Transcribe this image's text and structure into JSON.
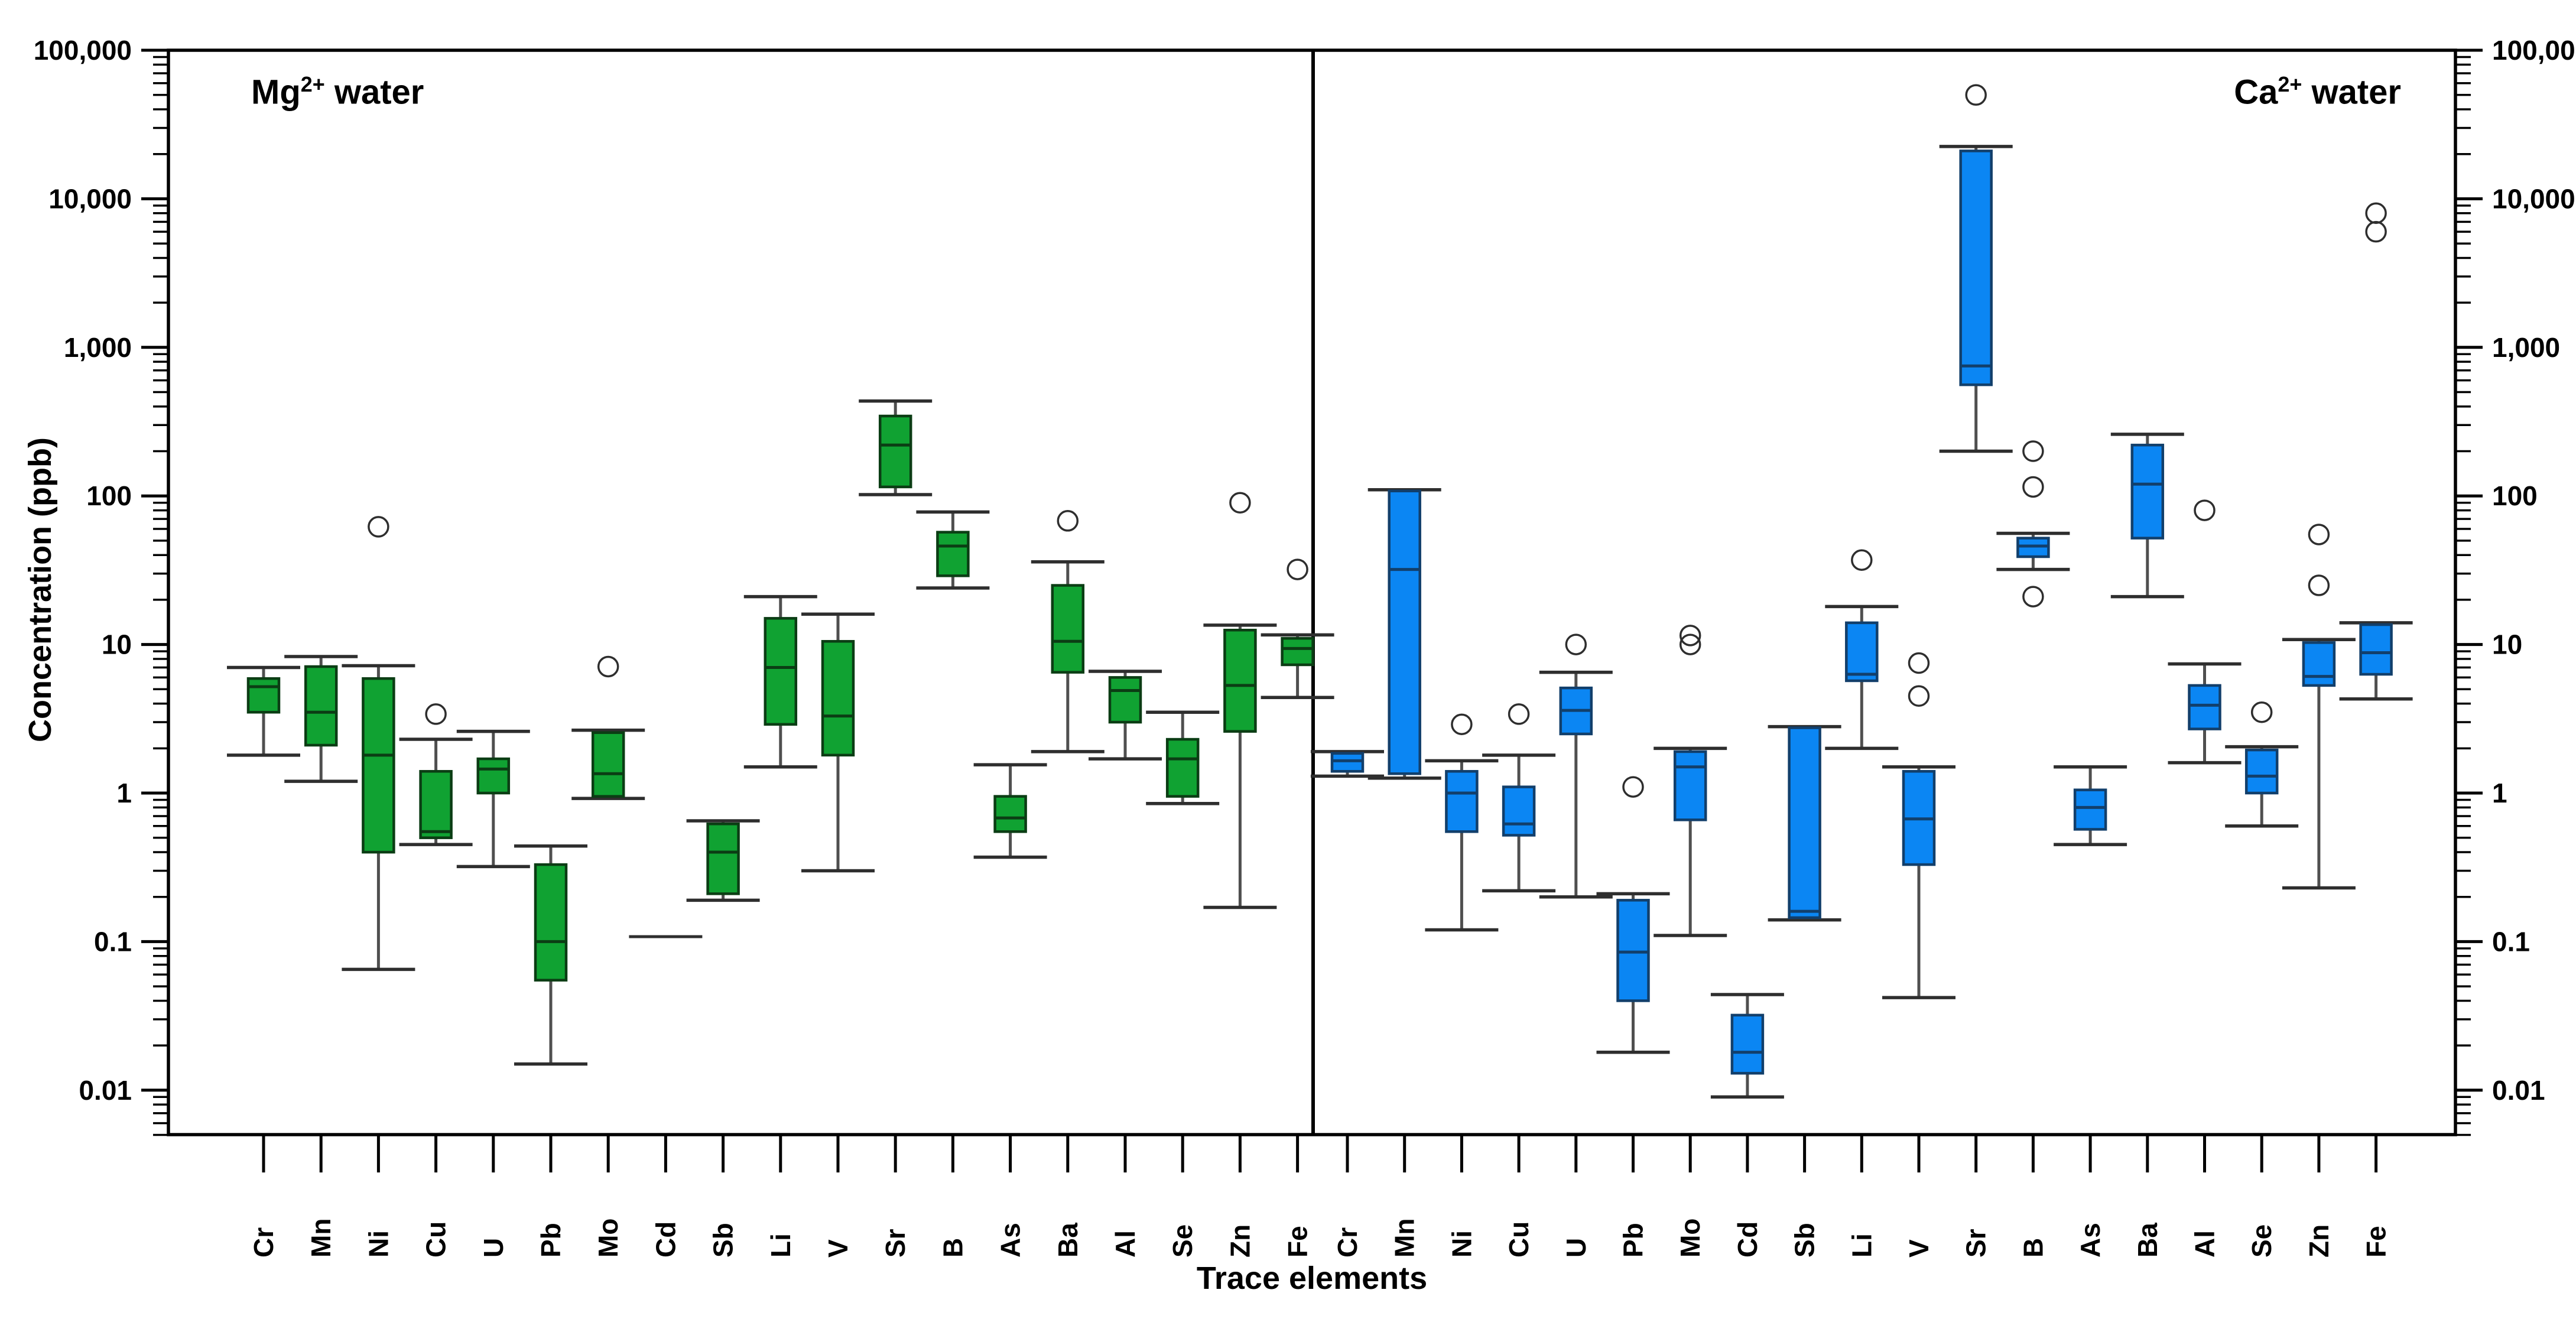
{
  "figure": {
    "x_axis_title": "Trace elements",
    "y_axis_title": "Concentration (ppb)"
  },
  "chart_data": {
    "type": "boxplot",
    "ylabel": "Concentration (ppb)",
    "xlabel": "Trace elements",
    "y_axis": {
      "scale": "log",
      "min": 0.005,
      "max": 100000,
      "tick_values": [
        100000,
        10000,
        1000,
        100,
        10,
        1,
        0.1,
        0.01
      ],
      "tick_labels": [
        "100,000",
        "10,000",
        "1,000",
        "100",
        "10",
        "1",
        "0.1",
        "0.01"
      ],
      "labels_on_left": true,
      "labels_on_right": true,
      "grid": false
    },
    "categories": [
      "Cr",
      "Mn",
      "Ni",
      "Cu",
      "U",
      "Pb",
      "Mo",
      "Cd",
      "Sb",
      "Li",
      "V",
      "Sr",
      "B",
      "As",
      "Ba",
      "Al",
      "Se",
      "Zn",
      "Fe"
    ],
    "panel_divider": true,
    "panels": [
      {
        "id": "mg",
        "title_base": "Mg",
        "title_sup": "2+",
        "title_rest": " water",
        "box_fill": "#10A232",
        "box_border": "#0B3D14",
        "boxes": [
          {
            "el": "Cr",
            "whisker_low": 1.8,
            "q1": 3.5,
            "median": 5.2,
            "q3": 5.9,
            "whisker_high": 7.0,
            "outliers": []
          },
          {
            "el": "Mn",
            "whisker_low": 1.2,
            "q1": 2.1,
            "median": 3.5,
            "q3": 7.1,
            "whisker_high": 8.3,
            "outliers": []
          },
          {
            "el": "Ni",
            "whisker_low": 0.065,
            "q1": 0.4,
            "median": 1.8,
            "q3": 5.9,
            "whisker_high": 7.2,
            "outliers": [
              62
            ]
          },
          {
            "el": "Cu",
            "whisker_low": 0.45,
            "q1": 0.5,
            "median": 0.55,
            "q3": 1.4,
            "whisker_high": 2.3,
            "outliers": [
              3.4
            ]
          },
          {
            "el": "U",
            "whisker_low": 0.32,
            "q1": 1.0,
            "median": 1.45,
            "q3": 1.7,
            "whisker_high": 2.6,
            "outliers": []
          },
          {
            "el": "Pb",
            "whisker_low": 0.015,
            "q1": 0.055,
            "median": 0.1,
            "q3": 0.33,
            "whisker_high": 0.44,
            "outliers": []
          },
          {
            "el": "Mo",
            "whisker_low": 0.92,
            "q1": 0.95,
            "median": 1.35,
            "q3": 2.55,
            "whisker_high": 2.65,
            "outliers": [
              7.1
            ]
          },
          {
            "el": "Cd",
            "flat": 0.108,
            "outliers": []
          },
          {
            "el": "Sb",
            "whisker_low": 0.19,
            "q1": 0.21,
            "median": 0.4,
            "q3": 0.62,
            "whisker_high": 0.65,
            "outliers": []
          },
          {
            "el": "Li",
            "whisker_low": 1.5,
            "q1": 2.9,
            "median": 7.0,
            "q3": 15,
            "whisker_high": 21,
            "outliers": []
          },
          {
            "el": "V",
            "whisker_low": 0.3,
            "q1": 1.8,
            "median": 3.3,
            "q3": 10.5,
            "whisker_high": 16,
            "outliers": []
          },
          {
            "el": "Sr",
            "whisker_low": 102,
            "q1": 115,
            "median": 220,
            "q3": 345,
            "whisker_high": 435,
            "outliers": []
          },
          {
            "el": "B",
            "whisker_low": 24,
            "q1": 29,
            "median": 46,
            "q3": 57,
            "whisker_high": 78,
            "outliers": []
          },
          {
            "el": "As",
            "whisker_low": 0.37,
            "q1": 0.55,
            "median": 0.68,
            "q3": 0.95,
            "whisker_high": 1.55,
            "outliers": []
          },
          {
            "el": "Ba",
            "whisker_low": 1.9,
            "q1": 6.5,
            "median": 10.5,
            "q3": 25,
            "whisker_high": 36,
            "outliers": [
              68
            ]
          },
          {
            "el": "Al",
            "whisker_low": 1.7,
            "q1": 3.0,
            "median": 4.9,
            "q3": 6.0,
            "whisker_high": 6.6,
            "outliers": []
          },
          {
            "el": "Se",
            "whisker_low": 0.85,
            "q1": 0.95,
            "median": 1.7,
            "q3": 2.3,
            "whisker_high": 3.5,
            "outliers": []
          },
          {
            "el": "Zn",
            "whisker_low": 0.17,
            "q1": 2.6,
            "median": 5.3,
            "q3": 12.5,
            "whisker_high": 13.5,
            "outliers": [
              90
            ]
          },
          {
            "el": "Fe",
            "whisker_low": 4.4,
            "q1": 7.3,
            "median": 9.4,
            "q3": 11.0,
            "whisker_high": 11.6,
            "outliers": [
              32
            ]
          }
        ]
      },
      {
        "id": "ca",
        "title_base": "Ca",
        "title_sup": "2+",
        "title_rest": " water",
        "box_fill": "#0B86F3",
        "box_border": "#123F6B",
        "boxes": [
          {
            "el": "Cr",
            "whisker_low": 1.3,
            "q1": 1.4,
            "median": 1.65,
            "q3": 1.85,
            "whisker_high": 1.9,
            "outliers": []
          },
          {
            "el": "Mn",
            "whisker_low": 1.26,
            "q1": 1.35,
            "median": 32,
            "q3": 108,
            "whisker_high": 110,
            "outliers": []
          },
          {
            "el": "Ni",
            "whisker_low": 0.12,
            "q1": 0.55,
            "median": 1.0,
            "q3": 1.4,
            "whisker_high": 1.65,
            "outliers": [
              2.9
            ]
          },
          {
            "el": "Cu",
            "whisker_low": 0.22,
            "q1": 0.52,
            "median": 0.62,
            "q3": 1.1,
            "whisker_high": 1.8,
            "outliers": [
              3.4
            ]
          },
          {
            "el": "U",
            "whisker_low": 0.2,
            "q1": 2.5,
            "median": 3.6,
            "q3": 5.1,
            "whisker_high": 6.5,
            "outliers": [
              10
            ]
          },
          {
            "el": "Pb",
            "whisker_low": 0.018,
            "q1": 0.04,
            "median": 0.085,
            "q3": 0.19,
            "whisker_high": 0.21,
            "outliers": [
              1.1
            ]
          },
          {
            "el": "Mo",
            "whisker_low": 0.11,
            "q1": 0.66,
            "median": 1.5,
            "q3": 1.9,
            "whisker_high": 2.0,
            "outliers": [
              10,
              11.5
            ]
          },
          {
            "el": "Cd",
            "whisker_low": 0.009,
            "q1": 0.013,
            "median": 0.018,
            "q3": 0.032,
            "whisker_high": 0.044,
            "outliers": []
          },
          {
            "el": "Sb",
            "whisker_low": 0.14,
            "q1": 0.145,
            "median": 0.16,
            "q3": 2.75,
            "whisker_high": 2.8,
            "outliers": []
          },
          {
            "el": "Li",
            "whisker_low": 2.0,
            "q1": 5.7,
            "median": 6.3,
            "q3": 14,
            "whisker_high": 18,
            "outliers": [
              37
            ]
          },
          {
            "el": "V",
            "whisker_low": 0.042,
            "q1": 0.33,
            "median": 0.67,
            "q3": 1.4,
            "whisker_high": 1.5,
            "outliers": [
              4.5,
              7.5
            ]
          },
          {
            "el": "Sr",
            "whisker_low": 200,
            "q1": 560,
            "median": 750,
            "q3": 21000,
            "whisker_high": 22500,
            "outliers": [
              50000
            ]
          },
          {
            "el": "B",
            "whisker_low": 32,
            "q1": 39,
            "median": 46,
            "q3": 52,
            "whisker_high": 56,
            "outliers": [
              21,
              115,
              200
            ]
          },
          {
            "el": "As",
            "whisker_low": 0.45,
            "q1": 0.57,
            "median": 0.8,
            "q3": 1.05,
            "whisker_high": 1.5,
            "outliers": []
          },
          {
            "el": "Ba",
            "whisker_low": 21,
            "q1": 52,
            "median": 120,
            "q3": 220,
            "whisker_high": 260,
            "outliers": []
          },
          {
            "el": "Al",
            "whisker_low": 1.6,
            "q1": 2.7,
            "median": 3.9,
            "q3": 5.3,
            "whisker_high": 7.4,
            "outliers": [
              80
            ]
          },
          {
            "el": "Se",
            "whisker_low": 0.6,
            "q1": 1.0,
            "median": 1.3,
            "q3": 1.95,
            "whisker_high": 2.05,
            "outliers": [
              3.5
            ]
          },
          {
            "el": "Zn",
            "whisker_low": 0.23,
            "q1": 5.3,
            "median": 6.1,
            "q3": 10.3,
            "whisker_high": 10.8,
            "outliers": [
              25,
              55
            ]
          },
          {
            "el": "Fe",
            "whisker_low": 4.3,
            "q1": 6.3,
            "median": 8.8,
            "q3": 13.6,
            "whisker_high": 14,
            "outliers": [
              6000,
              8000
            ]
          }
        ]
      }
    ],
    "style_colors": {
      "frame": "#000000",
      "whisker": "#4F4F4F",
      "cap": "#2E2E2E",
      "outlier_stroke": "#2E2E2E"
    }
  }
}
